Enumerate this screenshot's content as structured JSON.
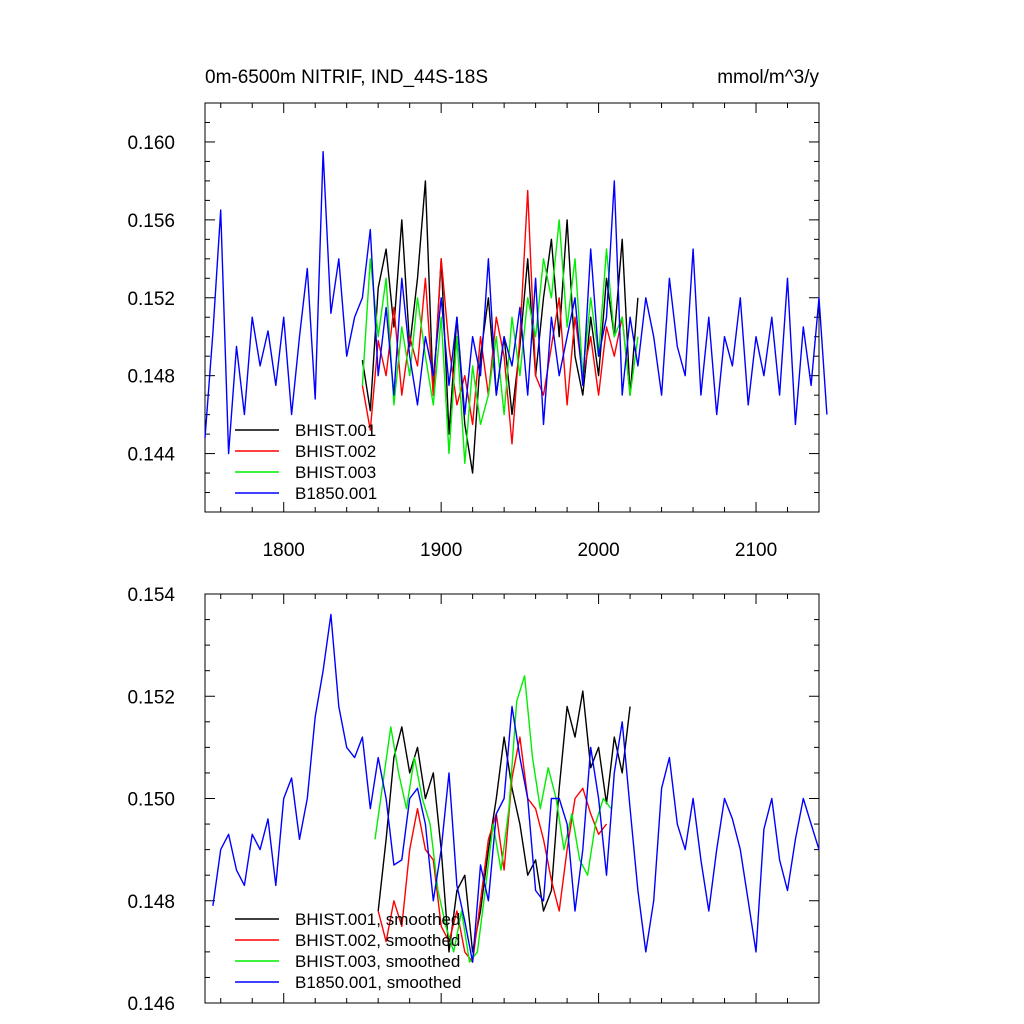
{
  "chart_data": [
    {
      "type": "line",
      "title": "0m-6500m NITRIF, IND_44S-18S",
      "units": "mmol/m^3/y",
      "xlim": [
        1750,
        2140
      ],
      "ylim": [
        0.141,
        0.162
      ],
      "xticks": [
        1800,
        1900,
        2000,
        2100
      ],
      "xtick_labels": [
        "1800",
        "1900",
        "2000",
        "2100"
      ],
      "yticks": [
        0.144,
        0.148,
        0.152,
        0.156,
        0.16
      ],
      "ytick_labels": [
        "0.144",
        "0.148",
        "0.152",
        "0.156",
        "0.160"
      ],
      "legend_position": "bottom-left",
      "series": [
        {
          "name": "BHIST.001",
          "color": "#000000",
          "start": 1850,
          "step": 5,
          "values": [
            0.1488,
            0.1462,
            0.1525,
            0.1545,
            0.1505,
            0.156,
            0.1495,
            0.153,
            0.158,
            0.147,
            0.154,
            0.145,
            0.151,
            0.1455,
            0.143,
            0.149,
            0.152,
            0.147,
            0.15,
            0.146,
            0.1495,
            0.154,
            0.148,
            0.152,
            0.155,
            0.15,
            0.156,
            0.149,
            0.147,
            0.151,
            0.148,
            0.153,
            0.15,
            0.155,
            0.147,
            0.152
          ]
        },
        {
          "name": "BHIST.002",
          "color": "#ff0000",
          "start": 1850,
          "step": 5,
          "values": [
            0.1475,
            0.1452,
            0.1498,
            0.148,
            0.1515,
            0.147,
            0.15,
            0.1485,
            0.153,
            0.147,
            0.154,
            0.1495,
            0.1465,
            0.148,
            0.1455,
            0.15,
            0.147,
            0.151,
            0.149,
            0.1445,
            0.15,
            0.1575,
            0.148,
            0.147,
            0.1495,
            0.152,
            0.1465,
            0.151,
            0.148,
            0.15,
            0.147,
            0.1505,
            0.149,
            0.151,
            0.147
          ]
        },
        {
          "name": "BHIST.003",
          "color": "#00ee00",
          "start": 1850,
          "step": 5,
          "values": [
            0.1475,
            0.154,
            0.15,
            0.153,
            0.1465,
            0.1505,
            0.148,
            0.152,
            0.149,
            0.1465,
            0.151,
            0.144,
            0.15,
            0.1435,
            0.1485,
            0.1455,
            0.147,
            0.15,
            0.146,
            0.151,
            0.148,
            0.152,
            0.15,
            0.154,
            0.152,
            0.156,
            0.1505,
            0.154,
            0.148,
            0.152,
            0.149,
            0.1545,
            0.15,
            0.151,
            0.147,
            0.15
          ]
        },
        {
          "name": "B1850.001",
          "color": "#0000ff",
          "start": 1750,
          "step": 5,
          "values": [
            0.1448,
            0.1502,
            0.1565,
            0.144,
            0.1495,
            0.146,
            0.151,
            0.1485,
            0.1503,
            0.1475,
            0.151,
            0.146,
            0.15,
            0.1535,
            0.1468,
            0.1595,
            0.1512,
            0.154,
            0.149,
            0.151,
            0.152,
            0.1555,
            0.148,
            0.1515,
            0.147,
            0.153,
            0.149,
            0.1465,
            0.15,
            0.148,
            0.152,
            0.1475,
            0.151,
            0.146,
            0.15,
            0.148,
            0.154,
            0.147,
            0.15,
            0.1485,
            0.1515,
            0.147,
            0.153,
            0.1455,
            0.151,
            0.148,
            0.15,
            0.152,
            0.1475,
            0.1545,
            0.149,
            0.151,
            0.158,
            0.147,
            0.151,
            0.1485,
            0.152,
            0.15,
            0.147,
            0.153,
            0.1495,
            0.148,
            0.1545,
            0.147,
            0.151,
            0.146,
            0.15,
            0.1485,
            0.152,
            0.1465,
            0.15,
            0.148,
            0.151,
            0.147,
            0.153,
            0.1455,
            0.1505,
            0.1475,
            0.152,
            0.146
          ]
        }
      ]
    },
    {
      "type": "line",
      "xlim": [
        1750,
        2140
      ],
      "ylim": [
        0.146,
        0.154
      ],
      "xticks": [
        1800,
        1900,
        2000,
        2100
      ],
      "yticks": [
        0.146,
        0.148,
        0.15,
        0.152,
        0.154
      ],
      "ytick_labels": [
        "0.146",
        "0.148",
        "0.150",
        "0.152",
        "0.154"
      ],
      "legend_position": "bottom-left",
      "series": [
        {
          "name": "BHIST.001, smoothed",
          "color": "#000000",
          "start": 1860,
          "step": 5,
          "values": [
            0.1478,
            0.1492,
            0.1508,
            0.1514,
            0.1505,
            0.151,
            0.15,
            0.1505,
            0.149,
            0.147,
            0.1482,
            0.1485,
            0.147,
            0.1478,
            0.149,
            0.15,
            0.1512,
            0.1502,
            0.1495,
            0.1485,
            0.1488,
            0.1478,
            0.1482,
            0.1502,
            0.1518,
            0.1512,
            0.1521,
            0.1506,
            0.151,
            0.1499,
            0.1512,
            0.1505,
            0.1518
          ]
        },
        {
          "name": "BHIST.002, smoothed",
          "color": "#ff0000",
          "start": 1860,
          "step": 5,
          "values": [
            0.1478,
            0.1472,
            0.148,
            0.1475,
            0.149,
            0.1498,
            0.149,
            0.1488,
            0.1475,
            0.1472,
            0.1478,
            0.147,
            0.1468,
            0.148,
            0.1492,
            0.1497,
            0.1486,
            0.1504,
            0.1512,
            0.15,
            0.1498,
            0.1492,
            0.1484,
            0.1478,
            0.149,
            0.15,
            0.1502,
            0.1497,
            0.1493,
            0.1495
          ]
        },
        {
          "name": "BHIST.003, smoothed",
          "color": "#00ee00",
          "start": 1858,
          "step": 5,
          "values": [
            0.1492,
            0.1503,
            0.1514,
            0.1505,
            0.1498,
            0.1508,
            0.15,
            0.1495,
            0.1482,
            0.1475,
            0.147,
            0.1478,
            0.1468,
            0.147,
            0.1482,
            0.1495,
            0.1486,
            0.1498,
            0.1519,
            0.1524,
            0.1508,
            0.1498,
            0.1506,
            0.15,
            0.149,
            0.1497,
            0.1488,
            0.1485,
            0.1495,
            0.15,
            0.1498
          ]
        },
        {
          "name": "B1850.001, smoothed",
          "color": "#0000ff",
          "start": 1755,
          "step": 5,
          "values": [
            0.1479,
            0.149,
            0.1493,
            0.1486,
            0.1483,
            0.1493,
            0.149,
            0.1496,
            0.1483,
            0.15,
            0.1504,
            0.1492,
            0.15,
            0.1516,
            0.1525,
            0.1536,
            0.1518,
            0.151,
            0.1508,
            0.1512,
            0.1498,
            0.1508,
            0.15,
            0.1487,
            0.1488,
            0.15,
            0.1502,
            0.1495,
            0.148,
            0.149,
            0.1505,
            0.1483,
            0.1476,
            0.1468,
            0.1487,
            0.148,
            0.1497,
            0.15,
            0.1518,
            0.1508,
            0.15,
            0.1482,
            0.148,
            0.15,
            0.15,
            0.1495,
            0.1478,
            0.149,
            0.151,
            0.15,
            0.1485,
            0.1505,
            0.1515,
            0.1498,
            0.1482,
            0.147,
            0.148,
            0.1502,
            0.1508,
            0.1495,
            0.149,
            0.15,
            0.1488,
            0.1478,
            0.149,
            0.15,
            0.1496,
            0.149,
            0.148,
            0.147,
            0.1494,
            0.15,
            0.1488,
            0.1482,
            0.1492,
            0.15,
            0.1495,
            0.149
          ]
        }
      ]
    }
  ]
}
